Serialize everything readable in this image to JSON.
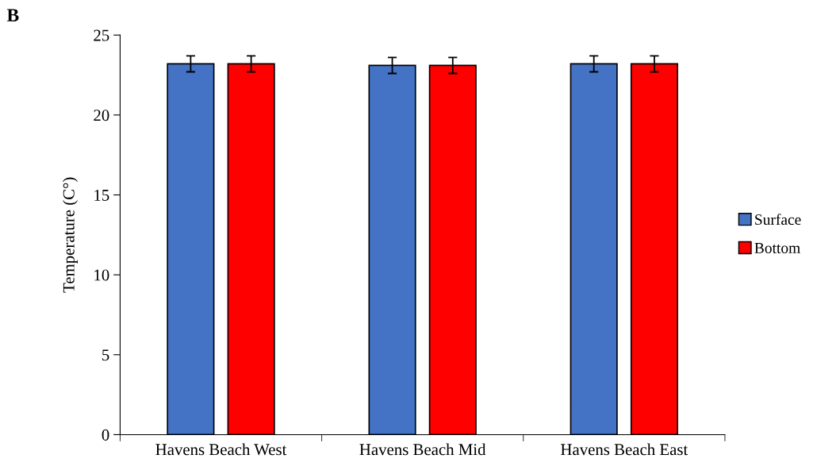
{
  "chart_data": {
    "type": "bar",
    "ylabel": "Temperature (C°)",
    "annotations": [
      "B"
    ],
    "categories": [
      "Havens Beach West",
      "Havens Beach Mid",
      "Havens Beach East"
    ],
    "series": [
      {
        "name": "Surface",
        "color": "#4472c4",
        "values": [
          23.2,
          23.1,
          23.2
        ],
        "errors": [
          0.5,
          0.5,
          0.5
        ]
      },
      {
        "name": "Bottom",
        "color": "#ff0000",
        "values": [
          23.2,
          23.1,
          23.2
        ],
        "errors": [
          0.5,
          0.5,
          0.5
        ]
      }
    ],
    "ylim": [
      0,
      25
    ],
    "yticks": [
      0,
      5,
      10,
      15,
      20,
      25
    ],
    "grid": false,
    "legend": "right"
  }
}
